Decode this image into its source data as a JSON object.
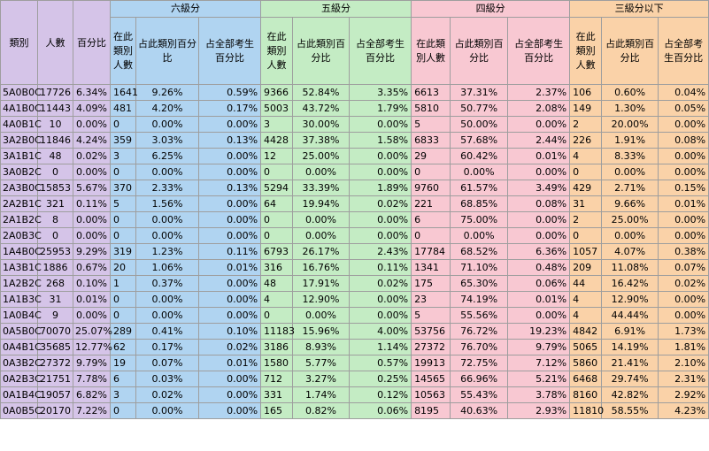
{
  "headers": {
    "category": "類別",
    "count": "人數",
    "percent": "百分比",
    "groups": [
      "六級分",
      "五級分",
      "四級分",
      "三級分以下"
    ],
    "sub": [
      "在此類別人數",
      "占此類別百分比",
      "占全部考生百分比"
    ],
    "sub_narrow_first": [
      "在此類別人數",
      "在此類別人數",
      "在此類別人數",
      "在此類別人數"
    ]
  },
  "colors": {
    "left": "#d5c4e8",
    "six": "#b0d4f1",
    "five": "#c4ecc4",
    "four": "#f8c8d2",
    "three": "#fad2a8"
  },
  "rows": [
    [
      "5A0B0C",
      "17726",
      "6.34%",
      "1641",
      "9.26%",
      "0.59%",
      "9366",
      "52.84%",
      "3.35%",
      "6613",
      "37.31%",
      "2.37%",
      "106",
      "0.60%",
      "0.04%"
    ],
    [
      "4A1B0C",
      "11443",
      "4.09%",
      "481",
      "4.20%",
      "0.17%",
      "5003",
      "43.72%",
      "1.79%",
      "5810",
      "50.77%",
      "2.08%",
      "149",
      "1.30%",
      "0.05%"
    ],
    [
      "4A0B1C",
      "10",
      "0.00%",
      "0",
      "0.00%",
      "0.00%",
      "3",
      "30.00%",
      "0.00%",
      "5",
      "50.00%",
      "0.00%",
      "2",
      "20.00%",
      "0.00%"
    ],
    [
      "3A2B0C",
      "11846",
      "4.24%",
      "359",
      "3.03%",
      "0.13%",
      "4428",
      "37.38%",
      "1.58%",
      "6833",
      "57.68%",
      "2.44%",
      "226",
      "1.91%",
      "0.08%"
    ],
    [
      "3A1B1C",
      "48",
      "0.02%",
      "3",
      "6.25%",
      "0.00%",
      "12",
      "25.00%",
      "0.00%",
      "29",
      "60.42%",
      "0.01%",
      "4",
      "8.33%",
      "0.00%"
    ],
    [
      "3A0B2C",
      "0",
      "0.00%",
      "0",
      "0.00%",
      "0.00%",
      "0",
      "0.00%",
      "0.00%",
      "0",
      "0.00%",
      "0.00%",
      "0",
      "0.00%",
      "0.00%"
    ],
    [
      "2A3B0C",
      "15853",
      "5.67%",
      "370",
      "2.33%",
      "0.13%",
      "5294",
      "33.39%",
      "1.89%",
      "9760",
      "61.57%",
      "3.49%",
      "429",
      "2.71%",
      "0.15%"
    ],
    [
      "2A2B1C",
      "321",
      "0.11%",
      "5",
      "1.56%",
      "0.00%",
      "64",
      "19.94%",
      "0.02%",
      "221",
      "68.85%",
      "0.08%",
      "31",
      "9.66%",
      "0.01%"
    ],
    [
      "2A1B2C",
      "8",
      "0.00%",
      "0",
      "0.00%",
      "0.00%",
      "0",
      "0.00%",
      "0.00%",
      "6",
      "75.00%",
      "0.00%",
      "2",
      "25.00%",
      "0.00%"
    ],
    [
      "2A0B3C",
      "0",
      "0.00%",
      "0",
      "0.00%",
      "0.00%",
      "0",
      "0.00%",
      "0.00%",
      "0",
      "0.00%",
      "0.00%",
      "0",
      "0.00%",
      "0.00%"
    ],
    [
      "1A4B0C",
      "25953",
      "9.29%",
      "319",
      "1.23%",
      "0.11%",
      "6793",
      "26.17%",
      "2.43%",
      "17784",
      "68.52%",
      "6.36%",
      "1057",
      "4.07%",
      "0.38%"
    ],
    [
      "1A3B1C",
      "1886",
      "0.67%",
      "20",
      "1.06%",
      "0.01%",
      "316",
      "16.76%",
      "0.11%",
      "1341",
      "71.10%",
      "0.48%",
      "209",
      "11.08%",
      "0.07%"
    ],
    [
      "1A2B2C",
      "268",
      "0.10%",
      "1",
      "0.37%",
      "0.00%",
      "48",
      "17.91%",
      "0.02%",
      "175",
      "65.30%",
      "0.06%",
      "44",
      "16.42%",
      "0.02%"
    ],
    [
      "1A1B3C",
      "31",
      "0.01%",
      "0",
      "0.00%",
      "0.00%",
      "4",
      "12.90%",
      "0.00%",
      "23",
      "74.19%",
      "0.01%",
      "4",
      "12.90%",
      "0.00%"
    ],
    [
      "1A0B4C",
      "9",
      "0.00%",
      "0",
      "0.00%",
      "0.00%",
      "0",
      "0.00%",
      "0.00%",
      "5",
      "55.56%",
      "0.00%",
      "4",
      "44.44%",
      "0.00%"
    ],
    [
      "0A5B0C",
      "70070",
      "25.07%",
      "289",
      "0.41%",
      "0.10%",
      "11183",
      "15.96%",
      "4.00%",
      "53756",
      "76.72%",
      "19.23%",
      "4842",
      "6.91%",
      "1.73%"
    ],
    [
      "0A4B1C",
      "35685",
      "12.77%",
      "62",
      "0.17%",
      "0.02%",
      "3186",
      "8.93%",
      "1.14%",
      "27372",
      "76.70%",
      "9.79%",
      "5065",
      "14.19%",
      "1.81%"
    ],
    [
      "0A3B2C",
      "27372",
      "9.79%",
      "19",
      "0.07%",
      "0.01%",
      "1580",
      "5.77%",
      "0.57%",
      "19913",
      "72.75%",
      "7.12%",
      "5860",
      "21.41%",
      "2.10%"
    ],
    [
      "0A2B3C",
      "21751",
      "7.78%",
      "6",
      "0.03%",
      "0.00%",
      "712",
      "3.27%",
      "0.25%",
      "14565",
      "66.96%",
      "5.21%",
      "6468",
      "29.74%",
      "2.31%"
    ],
    [
      "0A1B4C",
      "19057",
      "6.82%",
      "3",
      "0.02%",
      "0.00%",
      "331",
      "1.74%",
      "0.12%",
      "10563",
      "55.43%",
      "3.78%",
      "8160",
      "42.82%",
      "2.92%"
    ],
    [
      "0A0B5C",
      "20170",
      "7.22%",
      "0",
      "0.00%",
      "0.00%",
      "165",
      "0.82%",
      "0.06%",
      "8195",
      "40.63%",
      "2.93%",
      "11810",
      "58.55%",
      "4.23%"
    ]
  ]
}
